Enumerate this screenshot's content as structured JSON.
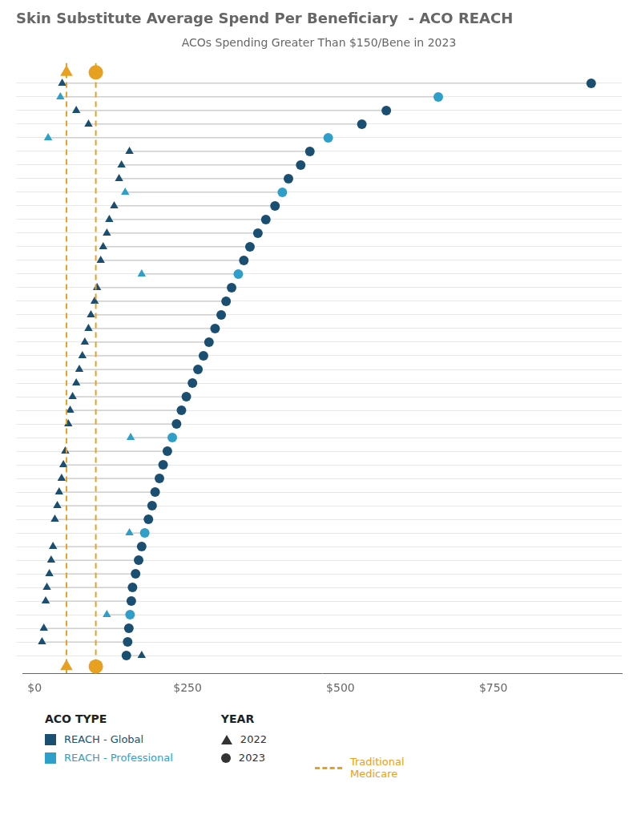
{
  "chart_data": {
    "type": "dumbbell",
    "title": "Skin Substitute Average Spend Per Beneficiary  - ACO REACH",
    "subtitle": "ACOs Spending Greater Than $150/Bene in 2023",
    "categories": [
      null,
      null,
      null,
      null,
      null,
      null,
      null,
      null,
      null,
      null,
      null,
      null,
      null,
      null,
      null,
      null,
      null,
      null,
      null,
      null,
      null,
      null,
      null,
      null,
      null,
      null,
      null,
      null,
      null,
      null,
      null,
      null,
      null,
      null,
      null,
      null,
      null,
      null,
      null,
      null,
      null,
      null,
      null
    ],
    "series": [
      {
        "name": "2022",
        "marker": "triangle",
        "values": [
          45,
          42,
          68,
          88,
          22,
          155,
          142,
          138,
          148,
          130,
          122,
          118,
          112,
          108,
          175,
          102,
          98,
          92,
          88,
          82,
          78,
          73,
          68,
          62,
          58,
          55,
          157,
          50,
          47,
          44,
          40,
          37,
          33,
          155,
          30,
          27,
          24,
          20,
          18,
          118,
          15,
          12,
          175
        ],
        "colors": [
          "#1b4f72",
          "#2e9fc9",
          "#1b4f72",
          "#1b4f72",
          "#2e9fc9",
          "#1b4f72",
          "#1b4f72",
          "#1b4f72",
          "#2e9fc9",
          "#1b4f72",
          "#1b4f72",
          "#1b4f72",
          "#1b4f72",
          "#1b4f72",
          "#2e9fc9",
          "#1b4f72",
          "#1b4f72",
          "#1b4f72",
          "#1b4f72",
          "#1b4f72",
          "#1b4f72",
          "#1b4f72",
          "#1b4f72",
          "#1b4f72",
          "#1b4f72",
          "#1b4f72",
          "#2e9fc9",
          "#1b4f72",
          "#1b4f72",
          "#1b4f72",
          "#1b4f72",
          "#1b4f72",
          "#1b4f72",
          "#2e9fc9",
          "#1b4f72",
          "#1b4f72",
          "#1b4f72",
          "#1b4f72",
          "#1b4f72",
          "#2e9fc9",
          "#1b4f72",
          "#1b4f72",
          "#1b4f72"
        ]
      },
      {
        "name": "2023",
        "marker": "circle",
        "values": [
          910,
          660,
          575,
          535,
          480,
          450,
          435,
          415,
          405,
          393,
          378,
          365,
          352,
          342,
          333,
          322,
          313,
          305,
          295,
          285,
          276,
          267,
          258,
          248,
          240,
          232,
          225,
          217,
          210,
          204,
          197,
          192,
          186,
          180,
          175,
          170,
          165,
          160,
          158,
          156,
          154,
          152,
          150
        ],
        "colors": [
          "#1b4f72",
          "#2e9fc9",
          "#1b4f72",
          "#1b4f72",
          "#2e9fc9",
          "#1b4f72",
          "#1b4f72",
          "#1b4f72",
          "#2e9fc9",
          "#1b4f72",
          "#1b4f72",
          "#1b4f72",
          "#1b4f72",
          "#1b4f72",
          "#2e9fc9",
          "#1b4f72",
          "#1b4f72",
          "#1b4f72",
          "#1b4f72",
          "#1b4f72",
          "#1b4f72",
          "#1b4f72",
          "#1b4f72",
          "#1b4f72",
          "#1b4f72",
          "#1b4f72",
          "#2e9fc9",
          "#1b4f72",
          "#1b4f72",
          "#1b4f72",
          "#1b4f72",
          "#1b4f72",
          "#1b4f72",
          "#2e9fc9",
          "#1b4f72",
          "#1b4f72",
          "#1b4f72",
          "#1b4f72",
          "#1b4f72",
          "#2e9fc9",
          "#1b4f72",
          "#1b4f72",
          "#1b4f72"
        ]
      }
    ],
    "reference_lines": {
      "name": "Traditional\nMedicare",
      "color": "#e8a020",
      "line_style": "dashed",
      "values": [
        52,
        100
      ],
      "markers": [
        "triangle",
        "circle"
      ]
    },
    "legend_groups": [
      {
        "title": "ACO TYPE",
        "entries": [
          {
            "name": "REACH - Global",
            "color": "#1b4f72"
          },
          {
            "name": "REACH - Professional",
            "color": "#2e9fc9"
          }
        ]
      },
      {
        "title": "YEAR"
      }
    ],
    "legend": "bottom",
    "xlim": [
      -20,
      960
    ],
    "xticks": [
      {
        "value": 0,
        "label": "$0"
      },
      {
        "value": 250,
        "label": "$250"
      },
      {
        "value": 500,
        "label": "$500"
      },
      {
        "value": 750,
        "label": "$750"
      }
    ],
    "grid": "y",
    "tick_labels": "x"
  }
}
